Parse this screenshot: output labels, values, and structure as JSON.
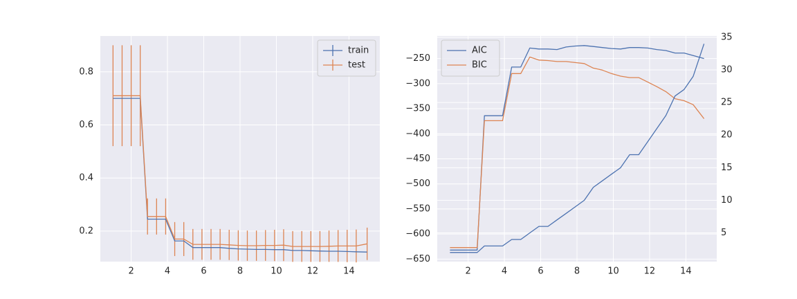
{
  "chart_data": [
    {
      "type": "line",
      "title": "",
      "xlabel": "",
      "ylabel": "",
      "xlim": [
        0.3,
        15.7
      ],
      "ylim": [
        0.085,
        0.935
      ],
      "xticks": [
        2,
        4,
        6,
        8,
        10,
        12,
        14
      ],
      "xtick_labels": [
        "2",
        "4",
        "6",
        "8",
        "10",
        "12",
        "14"
      ],
      "yticks": [
        0.2,
        0.4,
        0.6,
        0.8
      ],
      "ytick_labels": [
        "0.2",
        "0.4",
        "0.6",
        "0.8"
      ],
      "grid": true,
      "legend": "top-right",
      "error_bars": true,
      "x": [
        1.0,
        1.5,
        2.0,
        2.5,
        2.9,
        3.4,
        3.9,
        4.4,
        4.9,
        5.4,
        5.9,
        6.4,
        6.9,
        7.4,
        7.9,
        8.4,
        8.9,
        9.4,
        9.9,
        10.4,
        10.9,
        11.4,
        11.9,
        12.4,
        12.9,
        13.4,
        13.9,
        14.4,
        15.0
      ],
      "series": [
        {
          "name": "train",
          "color": "#4c72b0",
          "values": [
            0.7,
            0.7,
            0.7,
            0.7,
            0.245,
            0.245,
            0.245,
            0.163,
            0.163,
            0.138,
            0.138,
            0.138,
            0.138,
            0.135,
            0.133,
            0.132,
            0.131,
            0.131,
            0.13,
            0.13,
            0.127,
            0.127,
            0.126,
            0.125,
            0.124,
            0.124,
            0.123,
            0.122,
            0.121
          ],
          "errors": [
            0.0,
            0.0,
            0.0,
            0.0,
            0.0,
            0.0,
            0.0,
            0.0,
            0.0,
            0.0,
            0.0,
            0.0,
            0.0,
            0.0,
            0.0,
            0.0,
            0.0,
            0.0,
            0.0,
            0.0,
            0.0,
            0.0,
            0.0,
            0.0,
            0.0,
            0.0,
            0.0,
            0.0,
            0.0
          ]
        },
        {
          "name": "test",
          "color": "#dd8452",
          "values": [
            0.71,
            0.71,
            0.71,
            0.71,
            0.255,
            0.255,
            0.255,
            0.17,
            0.17,
            0.15,
            0.15,
            0.15,
            0.15,
            0.148,
            0.146,
            0.145,
            0.145,
            0.146,
            0.146,
            0.147,
            0.142,
            0.142,
            0.142,
            0.142,
            0.143,
            0.144,
            0.144,
            0.144,
            0.152
          ],
          "errors": [
            0.19,
            0.19,
            0.19,
            0.19,
            0.068,
            0.068,
            0.068,
            0.064,
            0.064,
            0.058,
            0.058,
            0.058,
            0.058,
            0.057,
            0.057,
            0.057,
            0.057,
            0.058,
            0.059,
            0.06,
            0.058,
            0.058,
            0.058,
            0.058,
            0.059,
            0.06,
            0.061,
            0.062,
            0.061
          ]
        }
      ]
    },
    {
      "type": "line",
      "title": "",
      "xlabel": "",
      "ylabel": "",
      "xlim": [
        0.3,
        15.7
      ],
      "ylim": [
        -655,
        -205
      ],
      "y2lim": [
        0.6,
        35.2
      ],
      "xticks": [
        2,
        4,
        6,
        8,
        10,
        12,
        14
      ],
      "xtick_labels": [
        "2",
        "4",
        "6",
        "8",
        "10",
        "12",
        "14"
      ],
      "yticks": [
        -650,
        -600,
        -550,
        -500,
        -450,
        -400,
        -350,
        -300,
        -250
      ],
      "ytick_labels": [
        "−650",
        "−600",
        "−550",
        "−500",
        "−450",
        "−400",
        "−350",
        "−300",
        "−250"
      ],
      "y2ticks": [
        5,
        10,
        15,
        20,
        25,
        30,
        35
      ],
      "y2tick_labels": [
        "5",
        "10",
        "15",
        "20",
        "25",
        "30",
        "35"
      ],
      "grid": true,
      "legend": "top-left",
      "x": [
        1.0,
        1.5,
        2.0,
        2.5,
        2.9,
        3.4,
        3.9,
        4.4,
        4.9,
        5.4,
        5.9,
        6.4,
        6.9,
        7.4,
        7.9,
        8.4,
        8.9,
        9.4,
        9.9,
        10.4,
        10.9,
        11.4,
        11.9,
        12.4,
        12.9,
        13.4,
        13.9,
        14.4,
        15.0
      ],
      "series": [
        {
          "name": "AIC",
          "color": "#4c72b0",
          "axis": "left",
          "values": [
            -632,
            -632,
            -632,
            -632,
            -364,
            -364,
            -364,
            -267,
            -267,
            -229,
            -231,
            -231,
            -232,
            -227,
            -225,
            -224,
            -226,
            -228,
            -230,
            -231,
            -228,
            -228,
            -229,
            -232,
            -234,
            -239,
            -239,
            -244,
            -250
          ]
        },
        {
          "name": "BIC",
          "color": "#dd8452",
          "axis": "left",
          "values": [
            -627,
            -627,
            -627,
            -627,
            -374,
            -374,
            -374,
            -280,
            -280,
            -247,
            -253,
            -254,
            -256,
            -256,
            -258,
            -260,
            -269,
            -273,
            -280,
            -285,
            -288,
            -288,
            -297,
            -306,
            -316,
            -330,
            -334,
            -342,
            -370
          ]
        },
        {
          "name": "",
          "color": "#4c72b0",
          "axis": "right",
          "values": [
            2,
            2,
            2,
            2,
            3,
            3,
            3,
            4,
            4,
            5,
            6,
            6,
            7,
            8,
            9,
            10,
            12,
            13,
            14,
            15,
            17,
            17,
            19,
            21,
            23,
            26,
            27,
            29,
            34
          ]
        }
      ]
    }
  ]
}
